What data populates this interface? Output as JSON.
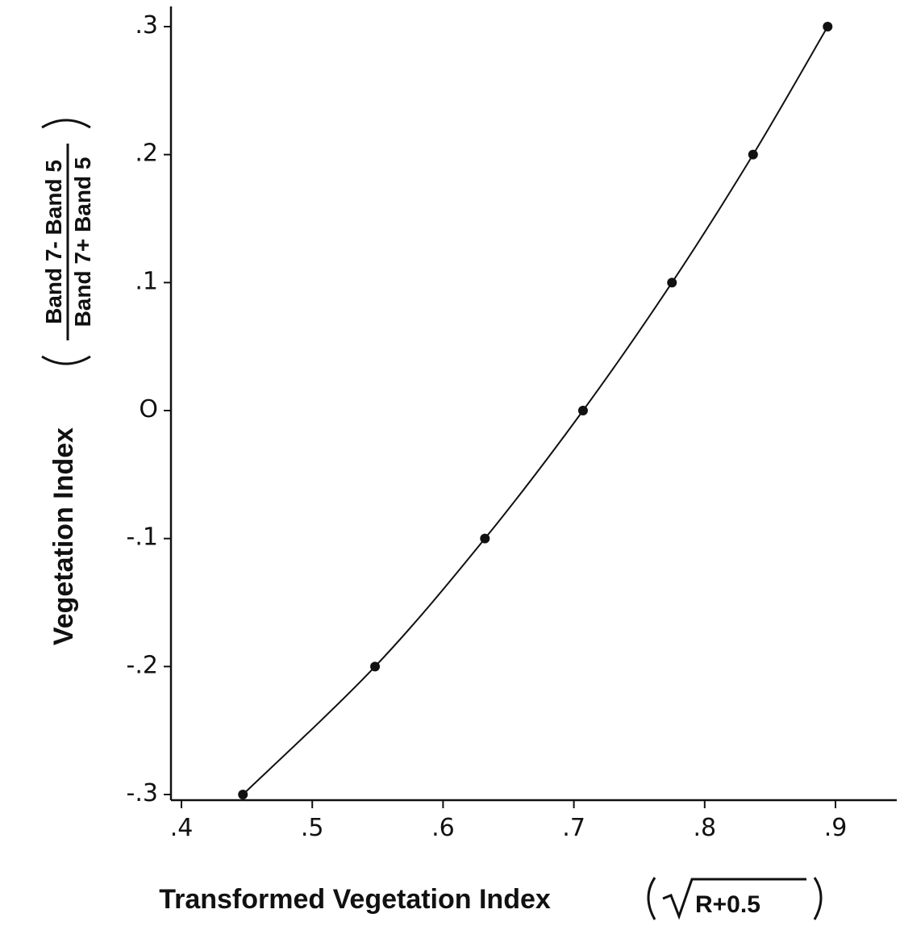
{
  "chart_data": {
    "type": "line",
    "title": "",
    "xlabel": "Transformed Vegetation Index",
    "xlabel_formula": "R+0.5",
    "ylabel": "Vegetation Index",
    "ylabel_fraction": {
      "numerator": "Band 7- Band 5",
      "denominator": "Band 7+ Band 5"
    },
    "xlim": [
      0.4,
      0.95
    ],
    "ylim": [
      -0.3,
      0.32
    ],
    "x_ticks": [
      0.4,
      0.5,
      0.6,
      0.7,
      0.8,
      0.9
    ],
    "x_tick_labels": [
      ".4",
      ".5",
      ".6",
      ".7",
      ".8",
      ".9"
    ],
    "y_ticks": [
      -0.3,
      -0.2,
      -0.1,
      0,
      0.1,
      0.2,
      0.3
    ],
    "y_tick_labels": [
      "-.3",
      "-.2",
      "-.1",
      "O",
      ".1",
      ".2",
      ".3"
    ],
    "grid": false,
    "legend": "none",
    "series": [
      {
        "x": [
          0.447,
          0.548,
          0.632,
          0.707,
          0.775,
          0.837,
          0.894
        ],
        "y": [
          -0.3,
          -0.2,
          -0.1,
          0.0,
          0.1,
          0.2,
          0.3
        ],
        "markers": true
      }
    ]
  }
}
